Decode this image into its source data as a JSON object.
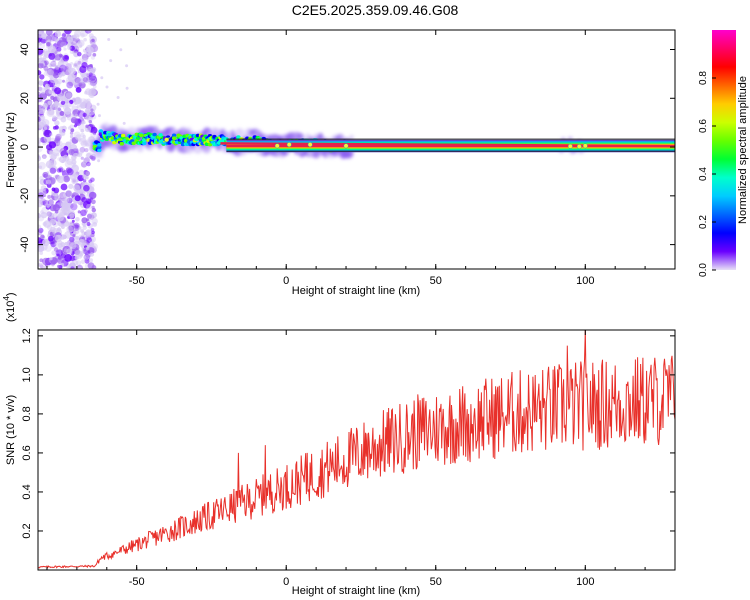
{
  "title": "C2E5.2025.359.09.46.G08",
  "colors": {
    "snr_line": "#e8302a",
    "axis": "#000000",
    "background": "#ffffff",
    "noise": "#7a2be0",
    "ridge_core": "#e8204a"
  },
  "chart_data": [
    {
      "type": "heatmap",
      "xlabel": "Height of straight line (km)",
      "ylabel": "Frequency (Hz)",
      "xlim": [
        -83,
        130
      ],
      "ylim": [
        -50,
        48
      ],
      "x_ticks": [
        "-50",
        "0",
        "50",
        "100"
      ],
      "y_ticks": [
        "-40",
        "-20",
        "0",
        "20",
        "40"
      ],
      "colorbar": {
        "label": "Normalized spectral amplitude",
        "range": [
          0.0,
          1.0
        ],
        "ticks": [
          "0.0",
          "0.2",
          "0.4",
          "0.6",
          "0.8"
        ],
        "colormap": [
          "#e8e0f6",
          "#6a00ff",
          "#0000ff",
          "#0066ff",
          "#00ccff",
          "#00ffcc",
          "#00ff33",
          "#66ff00",
          "#ccff00",
          "#ffcc00",
          "#ff6600",
          "#ff0000",
          "#ff0066",
          "#ff00cc"
        ]
      },
      "ridge": {
        "description_points": [
          [
            -62,
            5
          ],
          [
            -55,
            3
          ],
          [
            -45,
            3.5
          ],
          [
            -35,
            3
          ],
          [
            -25,
            3
          ],
          [
            -15,
            2
          ],
          [
            -10,
            2.5
          ],
          [
            -5,
            0.5
          ],
          [
            0,
            0.5
          ],
          [
            5,
            1
          ],
          [
            10,
            1
          ],
          [
            15,
            0.5
          ],
          [
            20,
            0.3
          ],
          [
            30,
            0.2
          ],
          [
            60,
            0.2
          ],
          [
            95,
            0.2
          ],
          [
            100,
            0.2
          ],
          [
            130,
            0.2
          ]
        ],
        "noise_region_x": [
          -83,
          -64
        ]
      }
    },
    {
      "type": "line",
      "xlabel": "Height of straight line (km)",
      "ylabel": "SNR (10 * v/v)",
      "multiplier": "(x10",
      "multiplier_exp": "4",
      "multiplier_close": ")",
      "xlim": [
        -83,
        130
      ],
      "ylim": [
        0,
        1.23
      ],
      "x_ticks": [
        "-50",
        "0",
        "50",
        "100"
      ],
      "y_ticks": [
        "0.2",
        "0.4",
        "0.6",
        "0.8",
        "1.0",
        "1.2"
      ],
      "series": [
        {
          "color": "#e8302a",
          "trend_points": [
            [
              -83,
              0.015
            ],
            [
              -64,
              0.02
            ],
            [
              -62,
              0.06
            ],
            [
              -55,
              0.1
            ],
            [
              -45,
              0.16
            ],
            [
              -35,
              0.22
            ],
            [
              -25,
              0.28
            ],
            [
              -15,
              0.34
            ],
            [
              -5,
              0.4
            ],
            [
              5,
              0.46
            ],
            [
              15,
              0.53
            ],
            [
              25,
              0.6
            ],
            [
              35,
              0.66
            ],
            [
              45,
              0.71
            ],
            [
              55,
              0.74
            ],
            [
              65,
              0.77
            ],
            [
              75,
              0.8
            ],
            [
              85,
              0.82
            ],
            [
              95,
              0.84
            ],
            [
              105,
              0.85
            ],
            [
              115,
              0.86
            ],
            [
              130,
              0.88
            ]
          ],
          "peaks": [
            [
              -16,
              0.6
            ],
            [
              -7,
              0.64
            ],
            [
              7,
              0.6
            ],
            [
              27,
              0.7
            ],
            [
              43,
              0.73
            ],
            [
              61,
              0.8
            ],
            [
              94,
              1.15
            ],
            [
              100,
              1.23
            ],
            [
              128,
              1.05
            ]
          ]
        }
      ]
    }
  ]
}
